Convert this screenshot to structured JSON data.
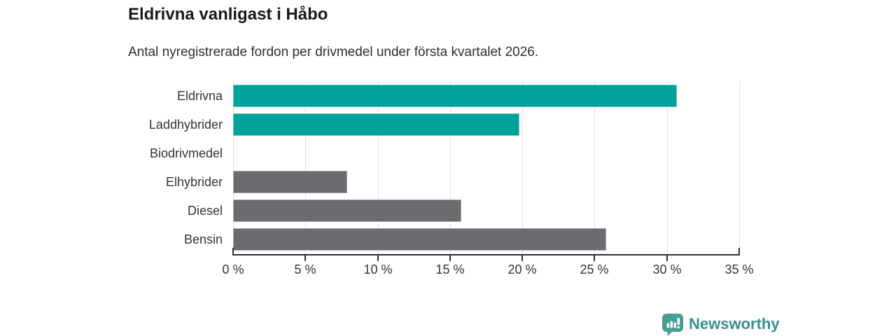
{
  "title": "Eldrivna vanligast i Håbo",
  "subtitle": "Antal nyregistrerade fordon per drivmedel under första kvartalet 2026.",
  "chart_data": {
    "type": "bar",
    "orientation": "horizontal",
    "title": "Eldrivna vanligast i Håbo",
    "subtitle": "Antal nyregistrerade fordon per drivmedel under första kvartalet 2026.",
    "categories": [
      "Eldrivna",
      "Laddhybrider",
      "Biodrivmedel",
      "Elhybrider",
      "Diesel",
      "Bensin"
    ],
    "values": [
      30.7,
      19.8,
      0,
      7.9,
      15.8,
      25.8
    ],
    "unit": "%",
    "xlim": [
      0,
      35
    ],
    "x_tick_values": [
      0,
      5,
      10,
      15,
      20,
      25,
      30,
      35
    ],
    "x_tick_labels": [
      "0 %",
      "5 %",
      "10 %",
      "15 %",
      "20 %",
      "25 %",
      "30 %",
      "35 %"
    ],
    "grid": true,
    "legend": "none",
    "highlighted_categories": [
      "Eldrivna",
      "Laddhybrider"
    ],
    "highlight_color": "#00a19a",
    "base_color": "#6b6b70"
  },
  "colors": {
    "background": "#ffffff",
    "title_text": "#1a1a1a",
    "subtitle_text": "#2e2e2e",
    "axis": "#2f2f2f",
    "gridline": "#e2e2e2",
    "label_text": "#333333"
  },
  "branding": {
    "logo_text": "Newsworthy",
    "logo_text_color": "#3a8f8e",
    "logo_icon": "chart-speech-bubble-icon",
    "logo_icon_color": "#4a9c96"
  }
}
